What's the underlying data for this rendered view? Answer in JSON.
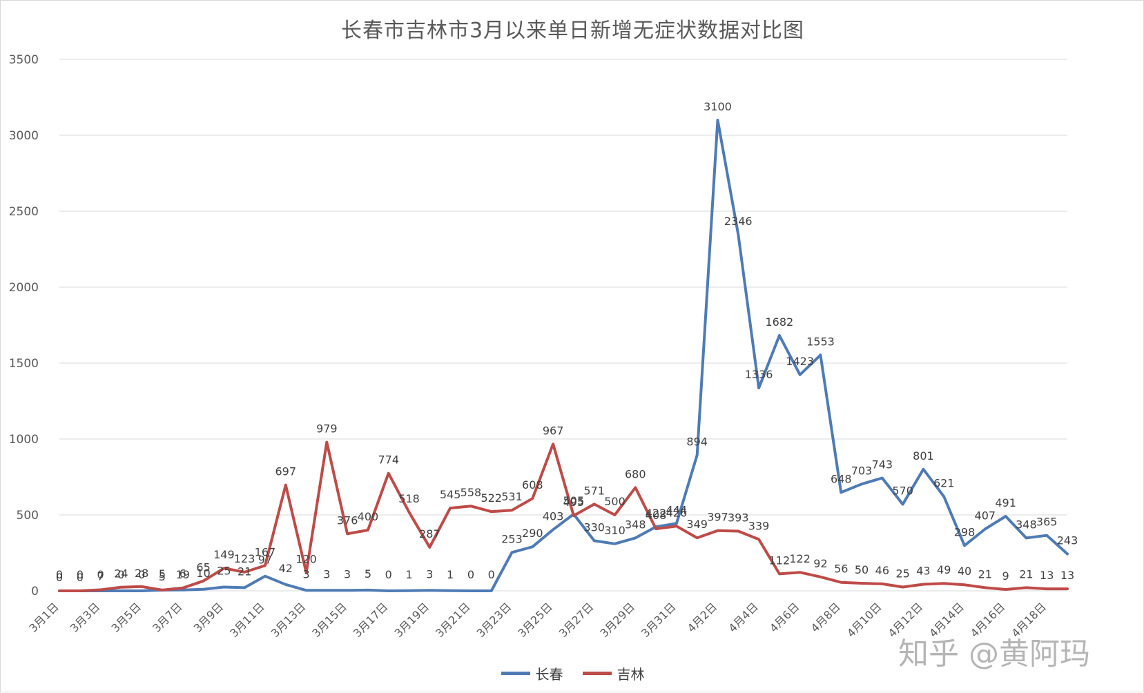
{
  "chart_data": {
    "type": "line",
    "title": "长春市吉林市3月以来单日新增无症状数据对比图",
    "xlabel": "",
    "ylabel": "",
    "ylim": [
      0,
      3500
    ],
    "yticks": [
      0,
      500,
      1000,
      1500,
      2000,
      2500,
      3000,
      3500
    ],
    "grid": true,
    "legend_position": "bottom",
    "categories": [
      "3月1日",
      "3月2日",
      "3月3日",
      "3月4日",
      "3月5日",
      "3月6日",
      "3月7日",
      "3月8日",
      "3月9日",
      "3月10日",
      "3月11日",
      "3月12日",
      "3月13日",
      "3月14日",
      "3月15日",
      "3月16日",
      "3月17日",
      "3月18日",
      "3月19日",
      "3月20日",
      "3月21日",
      "3月22日",
      "3月23日",
      "3月24日",
      "3月25日",
      "3月26日",
      "3月27日",
      "3月28日",
      "3月29日",
      "3月30日",
      "3月31日",
      "4月1日",
      "4月2日",
      "4月3日",
      "4月4日",
      "4月5日",
      "4月6日",
      "4月7日",
      "4月8日",
      "4月9日",
      "4月10日",
      "4月11日",
      "4月12日",
      "4月13日",
      "4月14日",
      "4月15日",
      "4月16日",
      "4月17日",
      "4月18日",
      "4月19日"
    ],
    "tick_labels": [
      "3月1日",
      "3月3日",
      "3月5日",
      "3月7日",
      "3月9日",
      "3月11日",
      "3月13日",
      "3月15日",
      "3月17日",
      "3月19日",
      "3月21日",
      "3月23日",
      "3月25日",
      "3月27日",
      "3月29日",
      "3月31日",
      "4月2日",
      "4月4日",
      "4月6日",
      "4月8日",
      "4月10日",
      "4月12日",
      "4月14日",
      "4月16日",
      "4月18日"
    ],
    "series": [
      {
        "name": "长春",
        "color": "#4e7bb5",
        "values": [
          0,
          0,
          0,
          0,
          0,
          5,
          6,
          10,
          25,
          21,
          97,
          42,
          3,
          3,
          3,
          5,
          0,
          1,
          3,
          1,
          0,
          0,
          253,
          290,
          403,
          505,
          330,
          310,
          348,
          422,
          444,
          894,
          3100,
          2346,
          1336,
          1682,
          1423,
          1553,
          648,
          703,
          743,
          570,
          801,
          621,
          298,
          407,
          491,
          348,
          365,
          243
        ]
      },
      {
        "name": "吉林",
        "color": "#be4b48",
        "values": [
          0,
          0,
          7,
          24,
          28,
          5,
          19,
          65,
          149,
          123,
          167,
          697,
          120,
          979,
          376,
          400,
          774,
          518,
          287,
          545,
          558,
          522,
          531,
          608,
          967,
          495,
          571,
          500,
          680,
          408,
          426,
          349,
          397,
          393,
          339,
          112,
          122,
          92,
          56,
          50,
          46,
          25,
          43,
          49,
          40,
          21,
          9,
          21,
          13,
          13
        ]
      }
    ]
  },
  "watermark": "知乎 @黄阿玛"
}
